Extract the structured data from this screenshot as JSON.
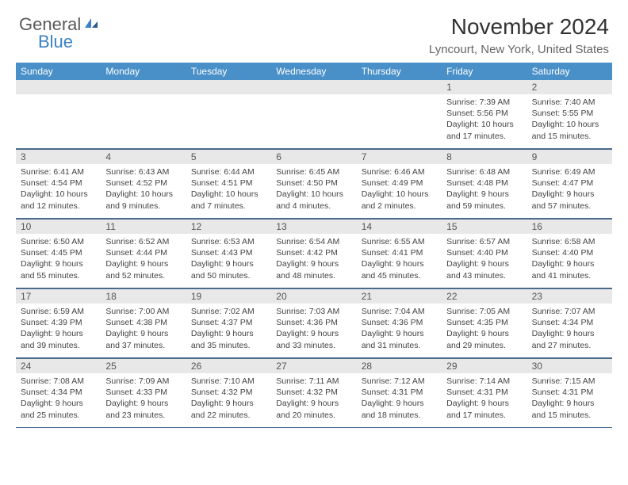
{
  "logo": {
    "text1": "General",
    "text2": "Blue"
  },
  "title": "November 2024",
  "location": "Lyncourt, New York, United States",
  "colors": {
    "header_bg": "#4a90c8",
    "divider": "#4a6a8a",
    "daynum_bg": "#e8e8e8",
    "logo_gray": "#5a5a5a",
    "logo_blue": "#3b82c4"
  },
  "weekdays": [
    "Sunday",
    "Monday",
    "Tuesday",
    "Wednesday",
    "Thursday",
    "Friday",
    "Saturday"
  ],
  "weeks": [
    [
      null,
      null,
      null,
      null,
      null,
      {
        "n": "1",
        "sr": "7:39 AM",
        "ss": "5:56 PM",
        "dl": "10 hours and 17 minutes."
      },
      {
        "n": "2",
        "sr": "7:40 AM",
        "ss": "5:55 PM",
        "dl": "10 hours and 15 minutes."
      }
    ],
    [
      {
        "n": "3",
        "sr": "6:41 AM",
        "ss": "4:54 PM",
        "dl": "10 hours and 12 minutes."
      },
      {
        "n": "4",
        "sr": "6:43 AM",
        "ss": "4:52 PM",
        "dl": "10 hours and 9 minutes."
      },
      {
        "n": "5",
        "sr": "6:44 AM",
        "ss": "4:51 PM",
        "dl": "10 hours and 7 minutes."
      },
      {
        "n": "6",
        "sr": "6:45 AM",
        "ss": "4:50 PM",
        "dl": "10 hours and 4 minutes."
      },
      {
        "n": "7",
        "sr": "6:46 AM",
        "ss": "4:49 PM",
        "dl": "10 hours and 2 minutes."
      },
      {
        "n": "8",
        "sr": "6:48 AM",
        "ss": "4:48 PM",
        "dl": "9 hours and 59 minutes."
      },
      {
        "n": "9",
        "sr": "6:49 AM",
        "ss": "4:47 PM",
        "dl": "9 hours and 57 minutes."
      }
    ],
    [
      {
        "n": "10",
        "sr": "6:50 AM",
        "ss": "4:45 PM",
        "dl": "9 hours and 55 minutes."
      },
      {
        "n": "11",
        "sr": "6:52 AM",
        "ss": "4:44 PM",
        "dl": "9 hours and 52 minutes."
      },
      {
        "n": "12",
        "sr": "6:53 AM",
        "ss": "4:43 PM",
        "dl": "9 hours and 50 minutes."
      },
      {
        "n": "13",
        "sr": "6:54 AM",
        "ss": "4:42 PM",
        "dl": "9 hours and 48 minutes."
      },
      {
        "n": "14",
        "sr": "6:55 AM",
        "ss": "4:41 PM",
        "dl": "9 hours and 45 minutes."
      },
      {
        "n": "15",
        "sr": "6:57 AM",
        "ss": "4:40 PM",
        "dl": "9 hours and 43 minutes."
      },
      {
        "n": "16",
        "sr": "6:58 AM",
        "ss": "4:40 PM",
        "dl": "9 hours and 41 minutes."
      }
    ],
    [
      {
        "n": "17",
        "sr": "6:59 AM",
        "ss": "4:39 PM",
        "dl": "9 hours and 39 minutes."
      },
      {
        "n": "18",
        "sr": "7:00 AM",
        "ss": "4:38 PM",
        "dl": "9 hours and 37 minutes."
      },
      {
        "n": "19",
        "sr": "7:02 AM",
        "ss": "4:37 PM",
        "dl": "9 hours and 35 minutes."
      },
      {
        "n": "20",
        "sr": "7:03 AM",
        "ss": "4:36 PM",
        "dl": "9 hours and 33 minutes."
      },
      {
        "n": "21",
        "sr": "7:04 AM",
        "ss": "4:36 PM",
        "dl": "9 hours and 31 minutes."
      },
      {
        "n": "22",
        "sr": "7:05 AM",
        "ss": "4:35 PM",
        "dl": "9 hours and 29 minutes."
      },
      {
        "n": "23",
        "sr": "7:07 AM",
        "ss": "4:34 PM",
        "dl": "9 hours and 27 minutes."
      }
    ],
    [
      {
        "n": "24",
        "sr": "7:08 AM",
        "ss": "4:34 PM",
        "dl": "9 hours and 25 minutes."
      },
      {
        "n": "25",
        "sr": "7:09 AM",
        "ss": "4:33 PM",
        "dl": "9 hours and 23 minutes."
      },
      {
        "n": "26",
        "sr": "7:10 AM",
        "ss": "4:32 PM",
        "dl": "9 hours and 22 minutes."
      },
      {
        "n": "27",
        "sr": "7:11 AM",
        "ss": "4:32 PM",
        "dl": "9 hours and 20 minutes."
      },
      {
        "n": "28",
        "sr": "7:12 AM",
        "ss": "4:31 PM",
        "dl": "9 hours and 18 minutes."
      },
      {
        "n": "29",
        "sr": "7:14 AM",
        "ss": "4:31 PM",
        "dl": "9 hours and 17 minutes."
      },
      {
        "n": "30",
        "sr": "7:15 AM",
        "ss": "4:31 PM",
        "dl": "9 hours and 15 minutes."
      }
    ]
  ],
  "labels": {
    "sunrise": "Sunrise:",
    "sunset": "Sunset:",
    "daylight": "Daylight:"
  }
}
